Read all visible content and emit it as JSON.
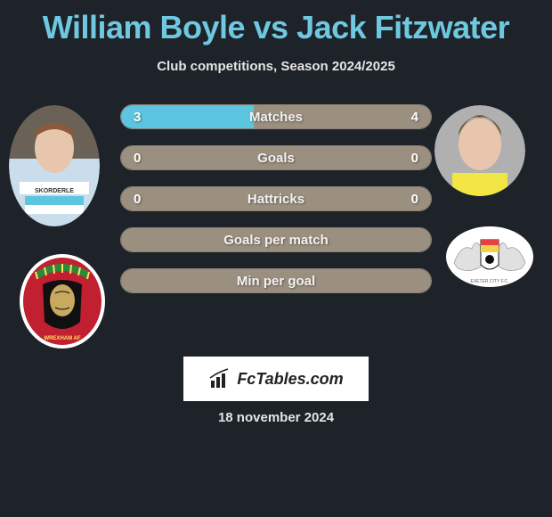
{
  "title": "William Boyle vs Jack Fitzwater",
  "subtitle": "Club competitions, Season 2024/2025",
  "colors": {
    "background": "#1e232a",
    "title": "#6ec8e0",
    "subtitle": "#e4e4e4",
    "bar_left": "#5cc5df",
    "bar_right": "#9b8f7f",
    "bar_border": "#8a8175",
    "bar_text": "#ffffff",
    "footer_bg": "#ffffff",
    "footer_text": "#222222"
  },
  "stats": [
    {
      "label": "Matches",
      "left_val": "3",
      "right_val": "4",
      "left_pct": 42.86,
      "right_pct": 57.14
    },
    {
      "label": "Goals",
      "left_val": "0",
      "right_val": "0",
      "left_pct": 0,
      "right_pct": 0
    },
    {
      "label": "Hattricks",
      "left_val": "0",
      "right_val": "0",
      "left_pct": 0,
      "right_pct": 0
    },
    {
      "label": "Goals per match",
      "left_val": "",
      "right_val": "",
      "left_pct": 0,
      "right_pct": 0
    },
    {
      "label": "Min per goal",
      "left_val": "",
      "right_val": "",
      "left_pct": 0,
      "right_pct": 0
    }
  ],
  "footer": {
    "brand": "FcTables.com",
    "date": "18 november 2024"
  },
  "player_left": {
    "name": "William Boyle"
  },
  "player_right": {
    "name": "Jack Fitzwater"
  }
}
